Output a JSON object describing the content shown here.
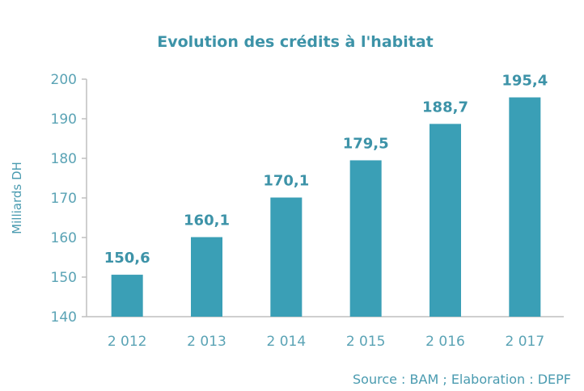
{
  "chart_data": {
    "type": "bar",
    "title": "Evolution des crédits à l'habitat",
    "ylabel": "Milliards DH",
    "xlabel": "",
    "categories": [
      "2 012",
      "2 013",
      "2 014",
      "2 015",
      "2 016",
      "2 017"
    ],
    "values": [
      150.6,
      160.1,
      170.1,
      179.5,
      188.7,
      195.4
    ],
    "data_labels": [
      "150,6",
      "160,1",
      "170,1",
      "179,5",
      "188,7",
      "195,4"
    ],
    "ylim": [
      140,
      200
    ],
    "yticks": [
      "140",
      "150",
      "160",
      "170",
      "180",
      "190",
      "200"
    ],
    "grid": false,
    "bar_color": "#3a9fb6",
    "source": "Source : BAM ; Elaboration : DEPF"
  }
}
